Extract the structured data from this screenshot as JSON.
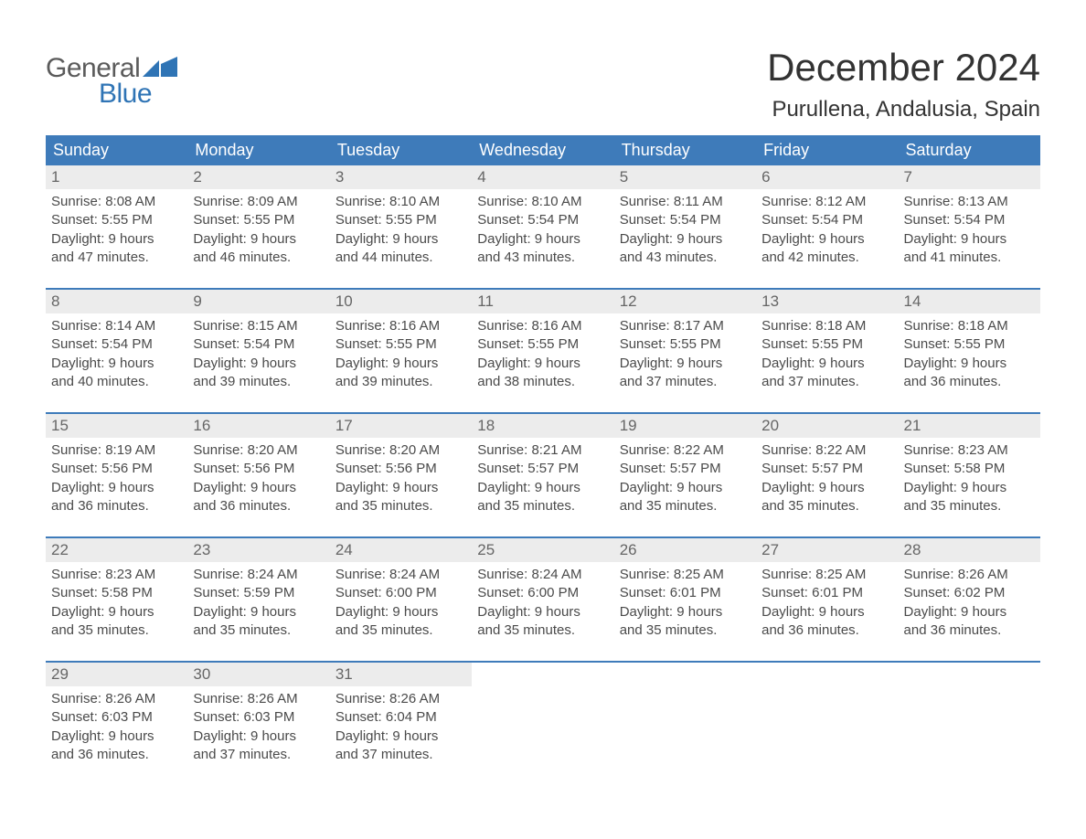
{
  "brand": {
    "word1": "General",
    "word2": "Blue",
    "word1_color": "#5b5b5b",
    "word2_color": "#2f74b5",
    "flag_color": "#2f74b5"
  },
  "title": "December 2024",
  "location": "Purullena, Andalusia, Spain",
  "columns": [
    "Sunday",
    "Monday",
    "Tuesday",
    "Wednesday",
    "Thursday",
    "Friday",
    "Saturday"
  ],
  "style": {
    "header_bg": "#3e7bba",
    "header_text": "#ffffff",
    "daynum_bg": "#ececec",
    "daynum_text": "#666666",
    "body_text": "#4a4a4a",
    "week_border": "#3e7bba",
    "background": "#ffffff",
    "title_fontsize": 42,
    "location_fontsize": 24,
    "header_fontsize": 18,
    "body_fontsize": 15
  },
  "weeks": [
    [
      {
        "num": "1",
        "sunrise": "Sunrise: 8:08 AM",
        "sunset": "Sunset: 5:55 PM",
        "d1": "Daylight: 9 hours",
        "d2": "and 47 minutes."
      },
      {
        "num": "2",
        "sunrise": "Sunrise: 8:09 AM",
        "sunset": "Sunset: 5:55 PM",
        "d1": "Daylight: 9 hours",
        "d2": "and 46 minutes."
      },
      {
        "num": "3",
        "sunrise": "Sunrise: 8:10 AM",
        "sunset": "Sunset: 5:55 PM",
        "d1": "Daylight: 9 hours",
        "d2": "and 44 minutes."
      },
      {
        "num": "4",
        "sunrise": "Sunrise: 8:10 AM",
        "sunset": "Sunset: 5:54 PM",
        "d1": "Daylight: 9 hours",
        "d2": "and 43 minutes."
      },
      {
        "num": "5",
        "sunrise": "Sunrise: 8:11 AM",
        "sunset": "Sunset: 5:54 PM",
        "d1": "Daylight: 9 hours",
        "d2": "and 43 minutes."
      },
      {
        "num": "6",
        "sunrise": "Sunrise: 8:12 AM",
        "sunset": "Sunset: 5:54 PM",
        "d1": "Daylight: 9 hours",
        "d2": "and 42 minutes."
      },
      {
        "num": "7",
        "sunrise": "Sunrise: 8:13 AM",
        "sunset": "Sunset: 5:54 PM",
        "d1": "Daylight: 9 hours",
        "d2": "and 41 minutes."
      }
    ],
    [
      {
        "num": "8",
        "sunrise": "Sunrise: 8:14 AM",
        "sunset": "Sunset: 5:54 PM",
        "d1": "Daylight: 9 hours",
        "d2": "and 40 minutes."
      },
      {
        "num": "9",
        "sunrise": "Sunrise: 8:15 AM",
        "sunset": "Sunset: 5:54 PM",
        "d1": "Daylight: 9 hours",
        "d2": "and 39 minutes."
      },
      {
        "num": "10",
        "sunrise": "Sunrise: 8:16 AM",
        "sunset": "Sunset: 5:55 PM",
        "d1": "Daylight: 9 hours",
        "d2": "and 39 minutes."
      },
      {
        "num": "11",
        "sunrise": "Sunrise: 8:16 AM",
        "sunset": "Sunset: 5:55 PM",
        "d1": "Daylight: 9 hours",
        "d2": "and 38 minutes."
      },
      {
        "num": "12",
        "sunrise": "Sunrise: 8:17 AM",
        "sunset": "Sunset: 5:55 PM",
        "d1": "Daylight: 9 hours",
        "d2": "and 37 minutes."
      },
      {
        "num": "13",
        "sunrise": "Sunrise: 8:18 AM",
        "sunset": "Sunset: 5:55 PM",
        "d1": "Daylight: 9 hours",
        "d2": "and 37 minutes."
      },
      {
        "num": "14",
        "sunrise": "Sunrise: 8:18 AM",
        "sunset": "Sunset: 5:55 PM",
        "d1": "Daylight: 9 hours",
        "d2": "and 36 minutes."
      }
    ],
    [
      {
        "num": "15",
        "sunrise": "Sunrise: 8:19 AM",
        "sunset": "Sunset: 5:56 PM",
        "d1": "Daylight: 9 hours",
        "d2": "and 36 minutes."
      },
      {
        "num": "16",
        "sunrise": "Sunrise: 8:20 AM",
        "sunset": "Sunset: 5:56 PM",
        "d1": "Daylight: 9 hours",
        "d2": "and 36 minutes."
      },
      {
        "num": "17",
        "sunrise": "Sunrise: 8:20 AM",
        "sunset": "Sunset: 5:56 PM",
        "d1": "Daylight: 9 hours",
        "d2": "and 35 minutes."
      },
      {
        "num": "18",
        "sunrise": "Sunrise: 8:21 AM",
        "sunset": "Sunset: 5:57 PM",
        "d1": "Daylight: 9 hours",
        "d2": "and 35 minutes."
      },
      {
        "num": "19",
        "sunrise": "Sunrise: 8:22 AM",
        "sunset": "Sunset: 5:57 PM",
        "d1": "Daylight: 9 hours",
        "d2": "and 35 minutes."
      },
      {
        "num": "20",
        "sunrise": "Sunrise: 8:22 AM",
        "sunset": "Sunset: 5:57 PM",
        "d1": "Daylight: 9 hours",
        "d2": "and 35 minutes."
      },
      {
        "num": "21",
        "sunrise": "Sunrise: 8:23 AM",
        "sunset": "Sunset: 5:58 PM",
        "d1": "Daylight: 9 hours",
        "d2": "and 35 minutes."
      }
    ],
    [
      {
        "num": "22",
        "sunrise": "Sunrise: 8:23 AM",
        "sunset": "Sunset: 5:58 PM",
        "d1": "Daylight: 9 hours",
        "d2": "and 35 minutes."
      },
      {
        "num": "23",
        "sunrise": "Sunrise: 8:24 AM",
        "sunset": "Sunset: 5:59 PM",
        "d1": "Daylight: 9 hours",
        "d2": "and 35 minutes."
      },
      {
        "num": "24",
        "sunrise": "Sunrise: 8:24 AM",
        "sunset": "Sunset: 6:00 PM",
        "d1": "Daylight: 9 hours",
        "d2": "and 35 minutes."
      },
      {
        "num": "25",
        "sunrise": "Sunrise: 8:24 AM",
        "sunset": "Sunset: 6:00 PM",
        "d1": "Daylight: 9 hours",
        "d2": "and 35 minutes."
      },
      {
        "num": "26",
        "sunrise": "Sunrise: 8:25 AM",
        "sunset": "Sunset: 6:01 PM",
        "d1": "Daylight: 9 hours",
        "d2": "and 35 minutes."
      },
      {
        "num": "27",
        "sunrise": "Sunrise: 8:25 AM",
        "sunset": "Sunset: 6:01 PM",
        "d1": "Daylight: 9 hours",
        "d2": "and 36 minutes."
      },
      {
        "num": "28",
        "sunrise": "Sunrise: 8:26 AM",
        "sunset": "Sunset: 6:02 PM",
        "d1": "Daylight: 9 hours",
        "d2": "and 36 minutes."
      }
    ],
    [
      {
        "num": "29",
        "sunrise": "Sunrise: 8:26 AM",
        "sunset": "Sunset: 6:03 PM",
        "d1": "Daylight: 9 hours",
        "d2": "and 36 minutes."
      },
      {
        "num": "30",
        "sunrise": "Sunrise: 8:26 AM",
        "sunset": "Sunset: 6:03 PM",
        "d1": "Daylight: 9 hours",
        "d2": "and 37 minutes."
      },
      {
        "num": "31",
        "sunrise": "Sunrise: 8:26 AM",
        "sunset": "Sunset: 6:04 PM",
        "d1": "Daylight: 9 hours",
        "d2": "and 37 minutes."
      },
      {
        "empty": true
      },
      {
        "empty": true
      },
      {
        "empty": true
      },
      {
        "empty": true
      }
    ]
  ]
}
